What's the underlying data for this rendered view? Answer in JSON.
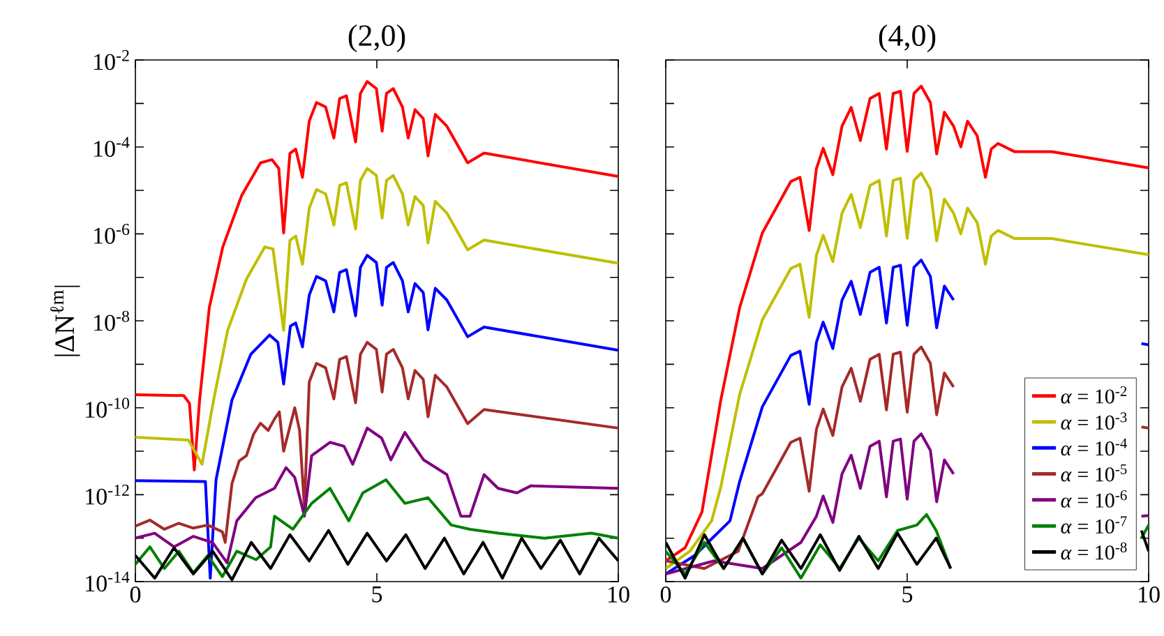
{
  "chart_data": [
    {
      "type": "line",
      "title": "(2,0)",
      "ylabel": "|ΔN$^{ℓm}$|",
      "log": "y",
      "xlim": [
        0,
        10
      ],
      "ylim": [
        1e-14,
        0.01
      ],
      "xticks": [
        0,
        5,
        10
      ],
      "yticks": [
        {
          "value": 1e-14,
          "label": "10$^{-14}$"
        },
        {
          "value": 1e-13,
          "label": null
        },
        {
          "value": 1e-12,
          "label": "10$^{-12}$"
        },
        {
          "value": 1e-11,
          "label": null
        },
        {
          "value": 1e-10,
          "label": "10$^{-10}$"
        },
        {
          "value": 1e-09,
          "label": null
        },
        {
          "value": 1e-08,
          "label": "10$^{-8}$"
        },
        {
          "value": 1e-07,
          "label": null
        },
        {
          "value": 1e-06,
          "label": "10$^{-6}$"
        },
        {
          "value": 1e-05,
          "label": null
        },
        {
          "value": 0.0001,
          "label": "10$^{-4}$"
        },
        {
          "value": 0.001,
          "label": null
        },
        {
          "value": 0.01,
          "label": "10$^{-2}$"
        }
      ],
      "series": [
        {
          "color": "#ff0000",
          "x": [
            0,
            1.0,
            1.12,
            1.22,
            1.33,
            1.53,
            1.81,
            2.2,
            2.59,
            2.83,
            2.97,
            3.07,
            3.2,
            3.32,
            3.46,
            3.6,
            3.75,
            3.94,
            4.11,
            4.23,
            4.37,
            4.56,
            4.66,
            4.8,
            4.99,
            5.11,
            5.2,
            5.34,
            5.53,
            5.65,
            5.79,
            5.96,
            6.06,
            6.21,
            6.45,
            6.88,
            7.22,
            10
          ],
          "values": [
            2e-10,
            1.9e-10,
            1.26e-10,
            3.7e-12,
            1.5e-10,
            2e-08,
            5e-07,
            7.6e-06,
            4.3e-05,
            5.1e-05,
            3.2e-05,
            1.05e-06,
            7.1e-05,
            8.9e-05,
            2e-05,
            0.00039,
            0.00105,
            0.00083,
            0.00016,
            0.0013,
            0.0015,
            0.00013,
            0.0017,
            0.0032,
            0.0022,
            0.00023,
            0.0017,
            0.0022,
            0.00083,
            0.00016,
            0.00072,
            0.00045,
            6.2e-05,
            0.00056,
            0.0003,
            4.3e-05,
            7.2e-05,
            2.1e-05
          ]
        },
        {
          "color": "#bfbf00",
          "x": [
            0,
            1.1,
            1.38,
            1.62,
            1.91,
            2.3,
            2.68,
            2.85,
            3.07,
            3.2,
            3.32,
            3.46,
            3.6,
            3.75,
            3.94,
            4.11,
            4.23,
            4.37,
            4.56,
            4.66,
            4.8,
            4.99,
            5.11,
            5.2,
            5.34,
            5.53,
            5.65,
            5.79,
            5.96,
            6.06,
            6.21,
            6.45,
            6.88,
            7.22,
            10
          ],
          "values": [
            2.1e-11,
            1.8e-11,
            5e-12,
            1.5e-10,
            6e-09,
            9.1e-08,
            5e-07,
            4.5e-07,
            6e-09,
            7.1e-07,
            8.9e-07,
            2e-07,
            3.9e-06,
            1.05e-05,
            8.3e-06,
            1.6e-06,
            1.3e-05,
            1.5e-05,
            1.3e-06,
            1.7e-05,
            3.2e-05,
            2.2e-05,
            2.3e-06,
            1.7e-05,
            2.2e-05,
            8.3e-06,
            1.6e-06,
            7.2e-06,
            4.5e-06,
            6.2e-07,
            5.6e-06,
            3e-06,
            4.3e-07,
            7.2e-07,
            2.1e-07
          ]
        },
        {
          "color": "#0000ff",
          "x": [
            0,
            1.45,
            1.55,
            1.67,
            2.0,
            2.39,
            2.78,
            2.95,
            3.07,
            3.21,
            3.32,
            3.46,
            3.6,
            3.75,
            3.94,
            4.11,
            4.23,
            4.37,
            4.56,
            4.66,
            4.8,
            4.99,
            5.11,
            5.2,
            5.34,
            5.53,
            5.65,
            5.79,
            5.96,
            6.06,
            6.21,
            6.45,
            6.88,
            7.22,
            10
          ],
          "values": [
            2.1e-12,
            2e-12,
            1.2e-14,
            2.2e-12,
            1.5e-10,
            1.7e-09,
            4.7e-09,
            3.2e-09,
            3.5e-10,
            7.6e-09,
            8.9e-09,
            2.5e-09,
            3.9e-08,
            1.05e-07,
            8.3e-08,
            1.6e-08,
            1.3e-07,
            1.5e-07,
            1.3e-08,
            1.7e-07,
            3.2e-07,
            2.2e-07,
            2.3e-08,
            1.7e-07,
            2.2e-07,
            8.3e-08,
            1.6e-08,
            7.2e-08,
            4.5e-08,
            6.2e-09,
            5.6e-08,
            3e-08,
            4.3e-09,
            7.2e-09,
            2.1e-09
          ]
        },
        {
          "color": "#a52a2a",
          "x": [
            0,
            0.3,
            0.6,
            0.9,
            1.2,
            1.5,
            1.8,
            1.86,
            2.0,
            2.15,
            2.3,
            2.45,
            2.59,
            2.75,
            2.88,
            2.98,
            3.07,
            3.3,
            3.4,
            3.5,
            3.6,
            3.75,
            3.94,
            4.11,
            4.23,
            4.37,
            4.56,
            4.66,
            4.8,
            4.99,
            5.11,
            5.2,
            5.34,
            5.53,
            5.65,
            5.79,
            5.96,
            6.06,
            6.21,
            6.45,
            6.88,
            7.22,
            10
          ],
          "values": [
            1.9e-13,
            2.6e-13,
            1.6e-13,
            2.2e-13,
            1.7e-13,
            2e-13,
            1.4e-13,
            8e-14,
            1.8e-12,
            6e-12,
            7.9e-12,
            2.5e-11,
            4.4e-11,
            3e-11,
            5.5e-11,
            8e-11,
            1e-11,
            1e-10,
            3e-11,
            5e-13,
            3.9e-10,
            1.05e-09,
            8.3e-10,
            1.6e-10,
            1.3e-09,
            1.5e-09,
            1.3e-10,
            1.7e-09,
            3.2e-09,
            2.2e-09,
            2.3e-10,
            1.7e-09,
            2.2e-09,
            8.3e-10,
            1.6e-10,
            7.2e-10,
            4.5e-10,
            6.2e-11,
            5.6e-10,
            3e-10,
            4.3e-11,
            9.1e-11,
            3.4e-11
          ]
        },
        {
          "color": "#800080",
          "x": [
            0,
            0.4,
            0.8,
            1.2,
            1.6,
            1.9,
            2.1,
            2.49,
            2.88,
            3.12,
            3.3,
            3.5,
            3.65,
            4.03,
            4.32,
            4.5,
            4.8,
            5.1,
            5.29,
            5.58,
            5.97,
            6.45,
            6.74,
            6.93,
            7.22,
            7.51,
            7.9,
            8.19,
            10
          ],
          "values": [
            1e-13,
            1.3e-13,
            6.3e-14,
            1.1e-13,
            7.9e-14,
            2.7e-14,
            2.5e-13,
            8.5e-13,
            1.4e-12,
            4.2e-12,
            2.5e-12,
            3.2e-13,
            7.9e-12,
            1.6e-11,
            1.3e-11,
            5e-12,
            3.4e-11,
            2e-11,
            6.3e-12,
            2.7e-11,
            6.3e-12,
            2.9e-12,
            3.2e-13,
            3.2e-13,
            2.9e-12,
            1.4e-12,
            1.1e-12,
            1.6e-12,
            1.4e-12
          ]
        },
        {
          "color": "#008000",
          "x": [
            0,
            0.3,
            0.6,
            0.9,
            1.2,
            1.5,
            1.8,
            2.1,
            2.5,
            2.8,
            2.88,
            3.26,
            3.65,
            4.03,
            4.42,
            4.71,
            5.19,
            5.58,
            6.06,
            6.54,
            6.93,
            7.51,
            8.47,
            9.44,
            10
          ],
          "values": [
            2.5e-14,
            6.3e-14,
            2e-14,
            5e-14,
            1.6e-14,
            4e-14,
            1.3e-14,
            5e-14,
            3.2e-14,
            6.3e-14,
            3.2e-13,
            1.6e-13,
            6.3e-13,
            1.4e-12,
            2.5e-13,
            1.1e-12,
            2.2e-12,
            6.3e-13,
            8.5e-13,
            2e-13,
            1.6e-13,
            1.3e-13,
            1e-13,
            1.3e-13,
            1e-13
          ]
        },
        {
          "color": "#000000",
          "x": [
            0,
            0.4,
            0.8,
            1.2,
            1.6,
            2.0,
            2.4,
            2.8,
            3.2,
            3.6,
            4.0,
            4.4,
            4.8,
            5.2,
            5.6,
            6.0,
            6.4,
            6.8,
            7.2,
            7.6,
            8.0,
            8.4,
            8.8,
            9.2,
            9.6,
            10
          ],
          "values": [
            4e-14,
            1.2e-14,
            6e-14,
            1.5e-14,
            5e-14,
            1.1e-14,
            8e-14,
            2e-14,
            1.2e-13,
            3e-14,
            1.5e-13,
            2.5e-14,
            1.3e-13,
            3e-14,
            1.2e-13,
            2e-14,
            1e-13,
            1.5e-14,
            8e-14,
            1.2e-14,
            1e-13,
            2e-14,
            9e-14,
            1.5e-14,
            1e-13,
            3e-14
          ]
        }
      ]
    },
    {
      "type": "line",
      "title": "(4,0)",
      "log": "y",
      "xlim": [
        0,
        10
      ],
      "ylim": [
        1e-14,
        0.01
      ],
      "xticks": [
        0,
        5,
        10
      ],
      "tick_labels": "x",
      "legend": "bottom right",
      "yticks": [
        {
          "value": 1e-14,
          "label": null
        },
        {
          "value": 1e-13,
          "label": null
        },
        {
          "value": 1e-12,
          "label": null
        },
        {
          "value": 1e-11,
          "label": null
        },
        {
          "value": 1e-10,
          "label": null
        },
        {
          "value": 1e-09,
          "label": null
        },
        {
          "value": 1e-08,
          "label": null
        },
        {
          "value": 1e-07,
          "label": null
        },
        {
          "value": 1e-06,
          "label": null
        },
        {
          "value": 1e-05,
          "label": null
        },
        {
          "value": 0.0001,
          "label": null
        },
        {
          "value": 0.001,
          "label": null
        },
        {
          "value": 0.01,
          "label": null
        }
      ],
      "series": [
        {
          "name": "*α* = 10$^{-2}$",
          "color": "#ff0000",
          "x": [
            0,
            0.4,
            0.75,
            1.14,
            1.53,
            2.0,
            2.59,
            2.78,
            2.97,
            3.12,
            3.26,
            3.46,
            3.65,
            3.84,
            4.03,
            4.23,
            4.42,
            4.57,
            4.71,
            4.86,
            5.0,
            5.14,
            5.29,
            5.48,
            5.61,
            5.77,
            5.96,
            6.11,
            6.25,
            6.45,
            6.62,
            6.74,
            6.88,
            7.22,
            7.99,
            10
          ],
          "values": [
            3e-14,
            6e-14,
            4e-13,
            1.5e-10,
            2e-08,
            1.05e-06,
            1.6e-05,
            2e-05,
            1.2e-06,
            3.2e-05,
            9.3e-05,
            2.3e-05,
            0.0003,
            0.00081,
            0.00014,
            0.0013,
            0.0017,
            8.9e-05,
            0.0017,
            0.0019,
            7.9e-05,
            0.0017,
            0.0025,
            0.00105,
            6.9e-05,
            0.00063,
            0.0003,
            0.0001,
            0.00039,
            0.00018,
            2e-05,
            8.9e-05,
            0.00012,
            7.8e-05,
            7.8e-05,
            3.3e-05
          ]
        },
        {
          "name": "*α* = 10$^{-3}$",
          "color": "#bfbf00",
          "x": [
            0,
            0.5,
            0.95,
            1.14,
            1.53,
            2.0,
            2.59,
            2.78,
            2.97,
            3.12,
            3.26,
            3.46,
            3.65,
            3.84,
            4.03,
            4.23,
            4.42,
            4.57,
            4.71,
            4.86,
            5.0,
            5.14,
            5.29,
            5.48,
            5.61,
            5.77,
            5.96,
            6.11,
            6.25,
            6.45,
            6.62,
            6.74,
            6.88,
            7.22,
            7.99,
            10
          ],
          "values": [
            2e-14,
            5e-14,
            2.5e-13,
            1.5e-12,
            2e-10,
            1.05e-08,
            1.6e-07,
            2e-07,
            1.2e-08,
            3.2e-07,
            9.3e-07,
            2.3e-07,
            3e-06,
            8.1e-06,
            1.4e-06,
            1.3e-05,
            1.7e-05,
            8.9e-07,
            1.7e-05,
            1.9e-05,
            7.9e-07,
            1.7e-05,
            2.5e-05,
            1.05e-05,
            6.9e-07,
            6.3e-06,
            3e-06,
            1e-06,
            3.9e-06,
            1.8e-06,
            2e-07,
            8.9e-07,
            1.2e-06,
            7.8e-07,
            7.8e-07,
            3.3e-07
          ]
        },
        {
          "name": "*α* = 10$^{-4}$",
          "color": "#0000ff",
          "x": [
            0,
            0.6,
            1.33,
            1.53,
            2.0,
            2.59,
            2.78,
            2.97,
            3.12,
            3.26,
            3.46,
            3.65,
            3.84,
            4.03,
            4.23,
            4.42,
            4.57,
            4.71,
            4.86,
            5.0,
            5.14,
            5.29,
            5.48,
            5.61,
            5.77,
            5.96,
            6.11,
            9.85,
            10
          ],
          "values": [
            1.5e-14,
            4e-14,
            2.5e-13,
            2e-12,
            1.05e-10,
            1.6e-09,
            2e-09,
            1.2e-10,
            3.2e-09,
            9.3e-09,
            2.3e-09,
            3e-08,
            8.1e-08,
            1.4e-08,
            1.3e-07,
            1.7e-07,
            8.9e-09,
            1.7e-07,
            1.9e-07,
            7.9e-09,
            1.7e-07,
            2.5e-07,
            1.05e-07,
            6.9e-09,
            6.3e-08,
            3e-08,
            null,
            3e-09,
            2.8e-09
          ]
        },
        {
          "name": "*α* = 10$^{-5}$",
          "color": "#a52a2a",
          "x": [
            0,
            0.8,
            1.5,
            1.91,
            2.0,
            2.59,
            2.78,
            2.97,
            3.12,
            3.26,
            3.46,
            3.65,
            3.84,
            4.03,
            4.23,
            4.42,
            4.57,
            4.71,
            4.86,
            5.0,
            5.14,
            5.29,
            5.48,
            5.61,
            5.77,
            5.96,
            6.11,
            9.85,
            10
          ],
          "values": [
            3e-14,
            2e-14,
            5e-14,
            9e-13,
            1.05e-12,
            1.6e-11,
            2e-11,
            1.2e-12,
            3.2e-11,
            9.3e-11,
            2.3e-11,
            3e-10,
            8.1e-10,
            1.4e-10,
            1.3e-09,
            1.7e-09,
            8.9e-11,
            1.7e-09,
            1.9e-09,
            7.9e-11,
            1.7e-09,
            2.5e-09,
            1.05e-09,
            6.9e-11,
            6.3e-10,
            3e-10,
            null,
            3.6e-11,
            3.4e-11
          ]
        },
        {
          "name": "*α* = 10$^{-6}$",
          "color": "#800080",
          "x": [
            0,
            1.0,
            2.0,
            2.8,
            3.12,
            3.26,
            3.46,
            3.65,
            3.84,
            4.03,
            4.23,
            4.42,
            4.57,
            4.71,
            4.86,
            5.0,
            5.14,
            5.29,
            5.48,
            5.61,
            5.77,
            5.96,
            6.11,
            9.85,
            10
          ],
          "values": [
            1.5e-14,
            3e-14,
            2e-14,
            8e-14,
            3.2e-13,
            9.3e-13,
            2.3e-13,
            3e-12,
            8.1e-12,
            1.4e-12,
            1.3e-11,
            1.7e-11,
            8.9e-13,
            1.7e-11,
            1.9e-11,
            7.9e-13,
            1.7e-11,
            2.5e-11,
            1.05e-11,
            6.9e-13,
            6.3e-12,
            3e-12,
            null,
            3.2e-13,
            3.3e-13
          ]
        },
        {
          "name": "*α* = 10$^{-7}$",
          "color": "#008000",
          "x": [
            0,
            0.4,
            0.8,
            1.2,
            1.6,
            2.0,
            2.4,
            2.8,
            3.2,
            3.6,
            4.0,
            4.4,
            4.8,
            5.2,
            5.4,
            5.6,
            5.9,
            6.11,
            9.85,
            10
          ],
          "values": [
            5e-14,
            1.5e-14,
            8e-14,
            2e-14,
            1e-13,
            1.5e-14,
            6e-14,
            1.2e-14,
            7e-14,
            2e-14,
            1e-13,
            3e-14,
            1.5e-13,
            2e-13,
            3.5e-13,
            1.5e-13,
            2e-14,
            null,
            1e-13,
            2e-13
          ]
        },
        {
          "name": "*α* = 10$^{-8}$",
          "color": "#000000",
          "x": [
            0,
            0.4,
            0.8,
            1.2,
            1.6,
            2.0,
            2.4,
            2.8,
            3.2,
            3.6,
            4.0,
            4.4,
            4.8,
            5.2,
            5.6,
            5.9,
            6.11,
            9.85,
            10
          ],
          "values": [
            8e-14,
            1.2e-14,
            1.2e-13,
            2e-14,
            1e-13,
            1.5e-14,
            9e-14,
            2e-14,
            1.2e-13,
            1.8e-14,
            1.1e-13,
            2e-14,
            1.3e-13,
            2.5e-14,
            1e-13,
            2e-14,
            null,
            1.5e-13,
            5e-14
          ]
        }
      ]
    }
  ]
}
